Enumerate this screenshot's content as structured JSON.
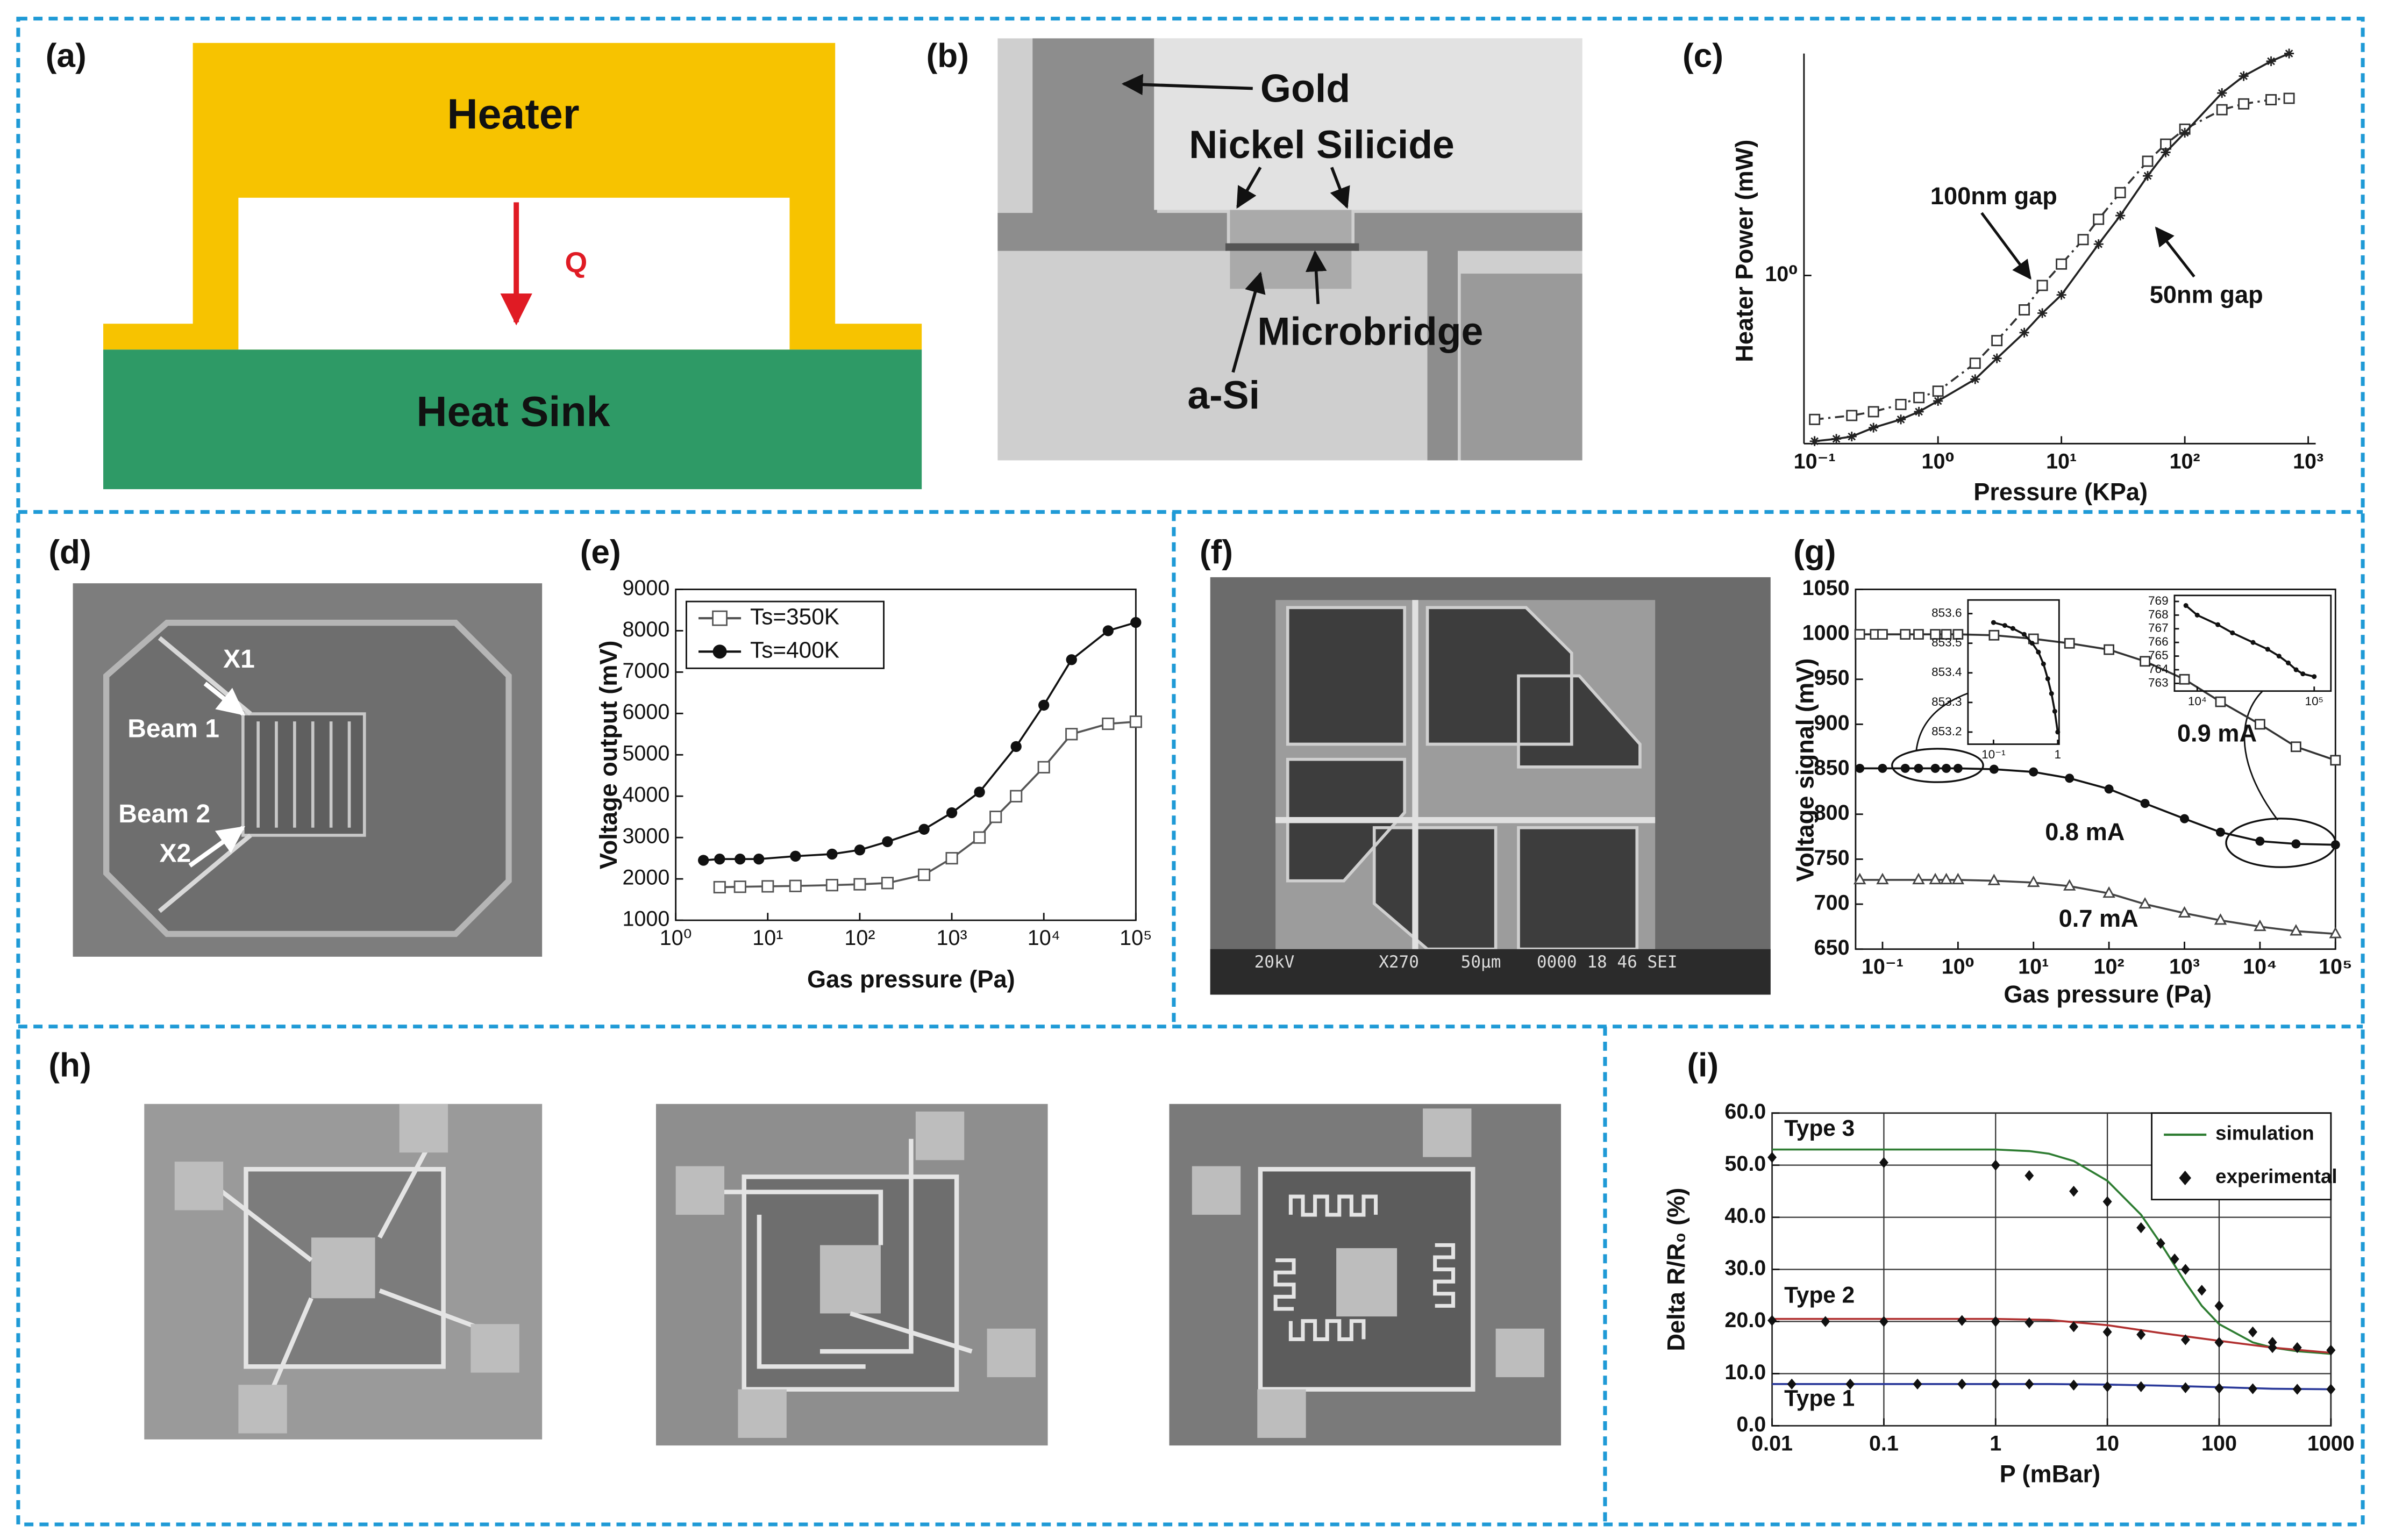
{
  "panel_labels": [
    "(a)",
    "(b)",
    "(c)",
    "(d)",
    "(e)",
    "(f)",
    "(g)",
    "(h)",
    "(i)"
  ],
  "panel_a": {
    "heater": "Heater",
    "q": "Q",
    "heat_sink": "Heat Sink"
  },
  "panel_b": {
    "gold": "Gold",
    "nickel_silicide": "Nickel Silicide",
    "microbridge": "Microbridge",
    "a_si": "a-Si"
  },
  "panel_d": {
    "x1": "X1",
    "beam1": "Beam 1",
    "beam2": "Beam 2",
    "x2": "X2"
  },
  "panel_f": {
    "sem_info": [
      "20kV",
      "X270",
      "50μm",
      "0000 18 46 SEI"
    ]
  },
  "chart_data": [
    {
      "type": "line",
      "xlabel": "Pressure (KPa)",
      "ylabel": "Heater Power (mW)",
      "xlog": true,
      "ylog": true,
      "xlim": [
        0.082,
        1150
      ],
      "ylim": [
        0.245,
        6.4
      ],
      "xticks": [
        {
          "value": 0.1,
          "label": "10⁻¹"
        },
        {
          "value": 1,
          "label": "10⁰"
        },
        {
          "value": 10,
          "label": "10¹"
        },
        {
          "value": 100,
          "label": "10²"
        },
        {
          "value": 1000,
          "label": "10³"
        }
      ],
      "yticks": [
        {
          "value": 1,
          "label": "10⁰"
        }
      ],
      "series": [
        {
          "name": "100nm gap",
          "color": "#333333",
          "marker": "square",
          "linestyle": "dashdot",
          "x": [
            0.1,
            0.2,
            0.3,
            0.5,
            0.7,
            1,
            2,
            3,
            5,
            7,
            10,
            15,
            20,
            30,
            50,
            70,
            100,
            200,
            300,
            500,
            700
          ],
          "values": [
            0.3,
            0.31,
            0.32,
            0.34,
            0.36,
            0.38,
            0.48,
            0.58,
            0.75,
            0.92,
            1.1,
            1.35,
            1.6,
            2.0,
            2.6,
            3.0,
            3.4,
            4.0,
            4.2,
            4.35,
            4.4
          ]
        },
        {
          "name": "50nm gap",
          "color": "#222222",
          "marker": "star",
          "linestyle": "solid",
          "x": [
            0.1,
            0.15,
            0.2,
            0.3,
            0.5,
            0.7,
            1,
            2,
            3,
            5,
            7,
            10,
            20,
            30,
            50,
            70,
            100,
            200,
            300,
            500,
            700
          ],
          "values": [
            0.25,
            0.255,
            0.26,
            0.28,
            0.3,
            0.32,
            0.35,
            0.42,
            0.5,
            0.62,
            0.73,
            0.85,
            1.3,
            1.65,
            2.3,
            2.8,
            3.3,
            4.6,
            5.3,
            6.0,
            6.4
          ]
        }
      ]
    },
    {
      "type": "line",
      "xlabel": "Gas pressure (Pa)",
      "ylabel": "Voltage output (mV)",
      "xlog": true,
      "xlim": [
        1,
        100000
      ],
      "ylim": [
        1000,
        9000
      ],
      "xticks": [
        {
          "value": 1,
          "label": "10⁰"
        },
        {
          "value": 10,
          "label": "10¹"
        },
        {
          "value": 100,
          "label": "10²"
        },
        {
          "value": 1000,
          "label": "10³"
        },
        {
          "value": 10000,
          "label": "10⁴"
        },
        {
          "value": 100000,
          "label": "10⁵"
        }
      ],
      "yticks": [
        1000,
        2000,
        3000,
        4000,
        5000,
        6000,
        7000,
        8000,
        9000
      ],
      "legend": "upper left",
      "series": [
        {
          "name": "Ts=350K",
          "color": "#555555",
          "marker": "square",
          "linestyle": "solid",
          "x": [
            3,
            5,
            10,
            20,
            50,
            100,
            200,
            500,
            1000,
            2000,
            3000,
            5000,
            10000,
            20000,
            50000,
            100000
          ],
          "values": [
            1800,
            1810,
            1820,
            1830,
            1850,
            1870,
            1900,
            2100,
            2500,
            3000,
            3500,
            4000,
            4700,
            5500,
            5750,
            5800
          ]
        },
        {
          "name": "Ts=400K",
          "color": "#111111",
          "marker": "circle",
          "linestyle": "solid",
          "x": [
            2,
            3,
            5,
            8,
            20,
            50,
            100,
            200,
            500,
            1000,
            2000,
            5000,
            10000,
            20000,
            50000,
            100000
          ],
          "values": [
            2450,
            2480,
            2480,
            2480,
            2550,
            2600,
            2700,
            2900,
            3200,
            3600,
            4100,
            5200,
            6200,
            7300,
            8000,
            8200
          ]
        }
      ]
    },
    {
      "type": "line",
      "xlabel": "Gas pressure (Pa)",
      "ylabel": "Voltage signal (mV)",
      "xlog": true,
      "xlim": [
        0.044,
        100000
      ],
      "ylim": [
        650,
        1050
      ],
      "xticks": [
        {
          "value": 0.1,
          "label": "10⁻¹"
        },
        {
          "value": 1,
          "label": "10⁰"
        },
        {
          "value": 10,
          "label": "10¹"
        },
        {
          "value": 100,
          "label": "10²"
        },
        {
          "value": 1000,
          "label": "10³"
        },
        {
          "value": 10000,
          "label": "10⁴"
        },
        {
          "value": 100000,
          "label": "10⁵"
        }
      ],
      "yticks": [
        650,
        700,
        750,
        800,
        850,
        900,
        950,
        1000,
        1050
      ],
      "series": [
        {
          "name": "0.9 mA",
          "color": "#333333",
          "marker": "square",
          "linestyle": "solid",
          "x": [
            0.05,
            0.08,
            0.1,
            0.2,
            0.3,
            0.5,
            0.7,
            1,
            3,
            10,
            30,
            100,
            300,
            1000,
            3000,
            10000,
            30000,
            100000
          ],
          "values": [
            1000,
            1000,
            1000,
            1000,
            1000,
            1000,
            1000,
            1000,
            999,
            995,
            990,
            983,
            970,
            950,
            925,
            900,
            875,
            860
          ]
        },
        {
          "name": "0.8 mA",
          "color": "#111111",
          "marker": "circle",
          "linestyle": "solid",
          "x": [
            0.05,
            0.1,
            0.2,
            0.3,
            0.5,
            0.7,
            1,
            3,
            10,
            30,
            100,
            300,
            1000,
            3000,
            10000,
            30000,
            100000
          ],
          "values": [
            851,
            851,
            851,
            851,
            851,
            851,
            851,
            850,
            847,
            840,
            828,
            812,
            795,
            780,
            770,
            767,
            766
          ]
        },
        {
          "name": "0.7 mA",
          "color": "#444444",
          "marker": "triangle",
          "linestyle": "solid",
          "x": [
            0.05,
            0.1,
            0.3,
            0.5,
            0.7,
            1,
            3,
            10,
            30,
            100,
            300,
            1000,
            3000,
            10000,
            30000,
            100000
          ],
          "values": [
            727,
            727,
            727,
            727,
            727,
            727,
            726,
            724,
            720,
            712,
            700,
            690,
            682,
            675,
            670,
            667
          ]
        }
      ]
    },
    {
      "type": "line",
      "xlabel": "P (mBar)",
      "ylabel": "Delta R/R₀ (%)",
      "xlog": true,
      "grid": true,
      "xlim": [
        0.01,
        1000
      ],
      "ylim": [
        0,
        60
      ],
      "xticks": [
        0.01,
        0.1,
        1,
        10,
        100,
        1000
      ],
      "yticks": [
        {
          "value": 0,
          "label": "0.0"
        },
        {
          "value": 10,
          "label": "10.0"
        },
        {
          "value": 20,
          "label": "20.0"
        },
        {
          "value": 30,
          "label": "30.0"
        },
        {
          "value": 40,
          "label": "40.0"
        },
        {
          "value": 50,
          "label": "50.0"
        },
        {
          "value": 60,
          "label": "60.0"
        }
      ],
      "legend": "upper right",
      "series": [
        {
          "name": "simulation",
          "color": "#2e7d32",
          "marker": "none",
          "linestyle": "solid",
          "curves": [
            {
              "name": "Type 3",
              "color": "#2e7d32",
              "x": [
                0.01,
                0.1,
                0.5,
                1,
                2,
                3,
                5,
                10,
                20,
                30,
                50,
                70,
                100,
                200,
                300,
                500,
                1000
              ],
              "values": [
                53,
                53,
                53,
                53,
                52.7,
                52.2,
                50.8,
                47,
                40.5,
                35,
                27.5,
                23,
                19.5,
                16,
                15,
                14.3,
                13.8
              ]
            },
            {
              "name": "Type 2",
              "color": "#b03030",
              "x": [
                0.01,
                0.1,
                1,
                3,
                10,
                30,
                100,
                300,
                1000
              ],
              "values": [
                20.5,
                20.5,
                20.5,
                20.3,
                19.3,
                17.8,
                16.3,
                15,
                14
              ]
            },
            {
              "name": "Type 1",
              "color": "#2b3a9a",
              "x": [
                0.01,
                0.1,
                1,
                3,
                10,
                30,
                100,
                300,
                1000
              ],
              "values": [
                8,
                8,
                8,
                8,
                7.9,
                7.7,
                7.4,
                7.1,
                7
              ]
            }
          ]
        },
        {
          "name": "experimental",
          "color": "#111111",
          "marker": "diamond",
          "linestyle": "none",
          "x": [
            0.01,
            0.1,
            1,
            2,
            5,
            10,
            20,
            30,
            40,
            50,
            70,
            100,
            200,
            300,
            500,
            1000,
            0.01,
            0.03,
            0.1,
            0.5,
            1,
            2,
            5,
            10,
            20,
            50,
            100,
            300,
            1000,
            0.015,
            0.05,
            0.2,
            0.5,
            1,
            2,
            5,
            10,
            20,
            50,
            100,
            200,
            500,
            1000
          ],
          "values": [
            51.5,
            50.5,
            50,
            48,
            45,
            43,
            38,
            35,
            32,
            30,
            26,
            23,
            18,
            16,
            15,
            14.5,
            20.2,
            20,
            20,
            20.2,
            20,
            19.8,
            19,
            18,
            17.5,
            16.5,
            16,
            15,
            14.5,
            8,
            8,
            8,
            8,
            8,
            8,
            7.8,
            7.5,
            7.5,
            7.3,
            7.2,
            7.1,
            7,
            7
          ]
        }
      ]
    },
    {
      "type": "line",
      "xlog": true,
      "xlim": [
        0.04,
        1.05
      ],
      "ylim": [
        853.159,
        853.646
      ],
      "xticks": [
        {
          "value": 0.1,
          "label": "10⁻¹"
        },
        1
      ],
      "yticks": [
        853.2,
        853.3,
        853.4,
        853.5,
        853.6
      ],
      "series": [
        {
          "color": "#111111",
          "marker": "circle",
          "linestyle": "solid",
          "x": [
            0.1,
            0.15,
            0.2,
            0.3,
            0.4,
            0.5,
            0.6,
            0.7,
            0.8,
            0.9,
            1.0
          ],
          "values": [
            853.57,
            853.56,
            853.55,
            853.53,
            853.5,
            853.47,
            853.43,
            853.38,
            853.33,
            853.27,
            853.2
          ]
        }
      ]
    },
    {
      "type": "line",
      "xlog": true,
      "xlim": [
        6390,
        138900
      ],
      "ylim": [
        762.44,
        769.44
      ],
      "xticks": [
        {
          "value": 10000,
          "label": "10⁴"
        },
        {
          "value": 100000,
          "label": "10⁵"
        }
      ],
      "yticks": [
        763,
        764,
        765,
        766,
        767,
        768,
        769
      ],
      "series": [
        {
          "color": "#111111",
          "marker": "circle",
          "linestyle": "solid",
          "x": [
            8000,
            10000,
            15000,
            20000,
            30000,
            40000,
            50000,
            60000,
            70000,
            80000,
            100000
          ],
          "values": [
            768.7,
            768,
            767.3,
            766.7,
            766,
            765.5,
            765,
            764.5,
            764,
            763.7,
            763.5
          ]
        }
      ]
    }
  ]
}
